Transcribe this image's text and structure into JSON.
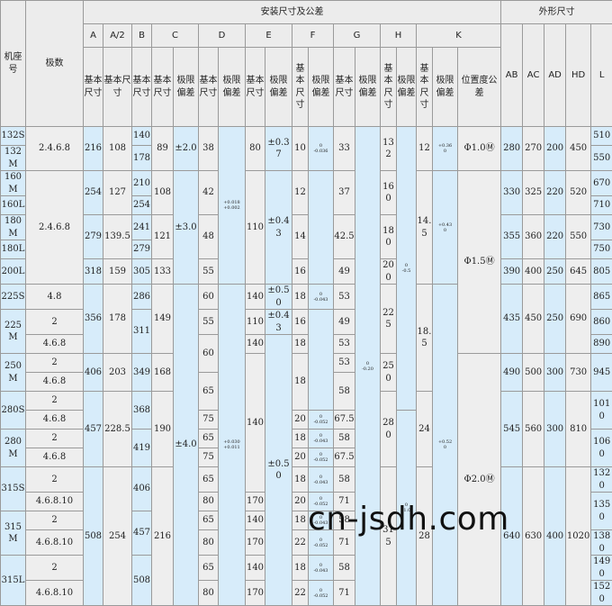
{
  "table": {
    "header": [
      [
        {
          "t": "机座号",
          "r": 3
        },
        {
          "t": "极数",
          "r": 3
        },
        {
          "t": "安装尺寸及公差",
          "c": 18
        },
        {
          "t": "外形尺寸",
          "c": 5
        }
      ],
      [
        "A",
        "A/2",
        "B",
        {
          "t": "C",
          "c": 2
        },
        {
          "t": "D",
          "c": 2
        },
        {
          "t": "E",
          "c": 2
        },
        {
          "t": "F",
          "c": 2
        },
        {
          "t": "G",
          "c": 2
        },
        {
          "t": "H",
          "c": 2
        },
        {
          "t": "K",
          "c": 3
        },
        {
          "t": "AB",
          "r": 2
        },
        {
          "t": "AC",
          "r": 2
        },
        {
          "t": "AD",
          "r": 2
        },
        {
          "t": "HD",
          "r": 2
        },
        {
          "t": "L",
          "r": 2
        }
      ],
      [
        "基本尺寸",
        "基本尺寸",
        "基本尺寸",
        "基本尺寸",
        "极限偏差",
        "基本尺寸",
        "极限偏差",
        "基本尺寸",
        "极限偏差",
        "基本尺寸",
        "极限偏差",
        "基本尺寸",
        "极限偏差",
        "基本尺寸",
        "极限偏差",
        "基本尺寸",
        "极限偏差",
        "位置度公差"
      ]
    ],
    "body": [
      [
        "132S",
        {
          "t": "2.4.6.8",
          "r": 2
        },
        {
          "t": "216",
          "r": 2
        },
        {
          "t": "108",
          "r": 2
        },
        "140",
        {
          "t": "89",
          "r": 2
        },
        {
          "t": "±2.0",
          "r": 2
        },
        {
          "t": "38",
          "r": 2
        },
        {
          "t": [
            "+0.018",
            "+0.002"
          ],
          "r": 7
        },
        {
          "t": "80",
          "r": 2
        },
        {
          "t": "±0.37",
          "r": 2
        },
        {
          "t": "10",
          "r": 2
        },
        {
          "t": [
            "0",
            "-0.036"
          ],
          "r": 2
        },
        {
          "t": "33",
          "r": 2
        },
        {
          "t": [
            "0",
            "-0.20"
          ],
          "r": 22
        },
        {
          "t": "132",
          "r": 2
        },
        {
          "t": [
            "0",
            "-0.5"
          ],
          "r": 13
        },
        {
          "t": "12",
          "r": 2
        },
        {
          "t": [
            "+0.36",
            "0"
          ],
          "r": 2
        },
        {
          "t": "Φ1.0Ⓜ",
          "r": 2
        },
        {
          "t": "280",
          "r": 2
        },
        {
          "t": "270",
          "r": 2
        },
        {
          "t": "200",
          "r": 2
        },
        {
          "t": "450",
          "r": 2
        },
        "510"
      ],
      [
        "132M",
        "178",
        "550"
      ],
      [
        "160M",
        {
          "t": "2.4.6.8",
          "r": 5
        },
        {
          "t": "254",
          "r": 2
        },
        {
          "t": "127",
          "r": 2
        },
        "210",
        {
          "t": "108",
          "r": 2
        },
        {
          "t": "±3.0",
          "r": 5
        },
        {
          "t": "42",
          "r": 2
        },
        {
          "t": "110",
          "r": 5
        },
        {
          "t": "±0.43",
          "r": 5
        },
        {
          "t": "12",
          "r": 2
        },
        {
          "r": 5
        },
        {
          "t": "37",
          "r": 2
        },
        {
          "t": "160",
          "r": 2
        },
        {
          "t": "14.5",
          "r": 5
        },
        {
          "t": [
            "+0.43",
            "0"
          ],
          "r": 5
        },
        {
          "t": "Φ1.5Ⓜ",
          "r": 8
        },
        {
          "t": "330",
          "r": 2
        },
        {
          "t": "325",
          "r": 2
        },
        {
          "t": "220",
          "r": 2
        },
        {
          "t": "520",
          "r": 2
        },
        "670"
      ],
      [
        "160L",
        "254",
        "710"
      ],
      [
        "180M",
        {
          "t": "279",
          "r": 2
        },
        {
          "t": "139.5",
          "r": 2
        },
        "241",
        {
          "t": "121",
          "r": 2
        },
        {
          "t": "48",
          "r": 2
        },
        {
          "t": "14",
          "r": 2
        },
        {
          "t": "42.5",
          "r": 2
        },
        {
          "t": "180",
          "r": 2
        },
        {
          "t": "355",
          "r": 2
        },
        {
          "t": "360",
          "r": 2
        },
        {
          "t": "220",
          "r": 2
        },
        {
          "t": "550",
          "r": 2
        },
        "730"
      ],
      [
        "180L",
        "279",
        "750"
      ],
      [
        "200L",
        "318",
        "159",
        "305",
        "133",
        "55",
        "16",
        "49",
        "200",
        "390",
        "400",
        "250",
        "645",
        "805"
      ],
      [
        "225S",
        "4.8",
        {
          "t": "356",
          "r": 3
        },
        {
          "t": "178",
          "r": 3
        },
        "286",
        {
          "t": "149",
          "r": 3
        },
        {
          "t": "±4.0",
          "r": 15
        },
        "60",
        {
          "t": [
            "+0.030",
            "+0.011"
          ],
          "r": 15
        },
        "140",
        "±0.50",
        "18",
        {
          "t": [
            "0",
            "-0.043"
          ]
        },
        "53",
        {
          "t": "225",
          "r": 3
        },
        {
          "t": "18.5",
          "r": 5
        },
        {
          "t": [
            "+0.52",
            "0"
          ],
          "r": 15
        },
        {
          "t": "435",
          "r": 3
        },
        {
          "t": "450",
          "r": 3
        },
        {
          "t": "250",
          "r": 3
        },
        {
          "t": "690",
          "r": 3
        },
        "865"
      ],
      [
        {
          "t": "225M",
          "r": 2
        },
        "2",
        {
          "t": "311",
          "r": 2
        },
        "55",
        "110",
        "±0.43",
        "16",
        {
          "r": 5
        },
        "49",
        "860"
      ],
      [
        "4.6.8",
        {
          "t": "60",
          "r": 2
        },
        "140",
        {
          "t": "±0.50",
          "r": 13
        },
        "18",
        "53",
        "890"
      ],
      [
        {
          "t": "250M",
          "r": 2
        },
        "2",
        {
          "t": "406",
          "r": 2
        },
        {
          "t": "203",
          "r": 2
        },
        {
          "t": "349",
          "r": 2
        },
        {
          "t": "168",
          "r": 2
        },
        {
          "t": "140",
          "r": 7
        },
        {
          "t": "18",
          "r": 3
        },
        "53",
        {
          "t": "250",
          "r": 2
        },
        {
          "t": "Φ2.0Ⓜ",
          "r": 12
        },
        {
          "t": "490",
          "r": 2
        },
        {
          "t": "500",
          "r": 2
        },
        {
          "t": "300",
          "r": 2
        },
        {
          "t": "730",
          "r": 2
        },
        {
          "t": "945",
          "r": 2
        }
      ],
      [
        "4.6.8",
        {
          "t": "65",
          "r": 2
        },
        {
          "t": "58",
          "r": 2
        }
      ],
      [
        {
          "t": "280S",
          "r": 2
        },
        "2",
        {
          "t": "457",
          "r": 4
        },
        {
          "t": "228.5",
          "r": 4
        },
        {
          "t": "368",
          "r": 2
        },
        {
          "t": "190",
          "r": 4
        },
        {
          "t": "280",
          "r": 4
        },
        {
          "t": "24",
          "r": 4
        },
        {
          "t": "545",
          "r": 4
        },
        {
          "t": "560",
          "r": 4
        },
        {
          "t": "300",
          "r": 4
        },
        {
          "t": "810",
          "r": 4
        },
        {
          "t": "1010",
          "r": 2
        }
      ],
      [
        "4.6.8",
        "75",
        "20",
        {
          "t": [
            "0",
            "-0.052"
          ]
        },
        "67.5",
        {
          "t": [
            "0",
            "-1.0"
          ],
          "r": 9
        }
      ],
      [
        {
          "t": "280M",
          "r": 2
        },
        "2",
        {
          "t": "419",
          "r": 2
        },
        "65",
        "18",
        {
          "t": [
            "0",
            "-0.043"
          ]
        },
        "58",
        {
          "t": "1060",
          "r": 2
        }
      ],
      [
        "4.6.8",
        "75",
        "20",
        {
          "t": [
            "0",
            "-0.052"
          ]
        },
        "67.5"
      ],
      [
        {
          "t": "315S",
          "r": 2
        },
        "2",
        {
          "t": "508",
          "r": 6
        },
        {
          "t": "254",
          "r": 6
        },
        {
          "t": "406",
          "r": 2
        },
        {
          "t": "216",
          "r": 6
        },
        "65",
        "18",
        {
          "t": [
            "0",
            "-0.043"
          ]
        },
        "58",
        {
          "t": "315",
          "r": 6
        },
        {
          "t": "28",
          "r": 6
        },
        {
          "t": "640",
          "r": 6
        },
        {
          "t": "630",
          "r": 6
        },
        {
          "t": "400",
          "r": 6
        },
        {
          "t": "1020",
          "r": 6
        },
        "1320"
      ],
      [
        "4.6.8.10",
        "80",
        "170",
        "20",
        {
          "t": [
            "0",
            "-0.052"
          ]
        },
        "71",
        {
          "t": "1350",
          "r": 2
        }
      ],
      [
        {
          "t": "315M",
          "r": 2
        },
        "2",
        {
          "t": "457",
          "r": 2
        },
        "65",
        "140",
        "18",
        {
          "t": [
            "0",
            "-0.043"
          ]
        },
        "58"
      ],
      [
        "4.6.8.10",
        "80",
        "170",
        "22",
        {
          "t": [
            "0",
            "-0.052"
          ]
        },
        "71",
        "1380"
      ],
      [
        {
          "t": "315L",
          "r": 2
        },
        "2",
        {
          "t": "508",
          "r": 2
        },
        "65",
        "140",
        "18",
        {
          "t": [
            "0",
            "-0.043"
          ]
        },
        "58",
        "1490"
      ],
      [
        "4.6.8.10",
        "80",
        "170",
        "22",
        {
          "t": [
            "0",
            "-0.052"
          ]
        },
        "71",
        "1520"
      ]
    ]
  },
  "watermark": "cn-jsdh.com"
}
